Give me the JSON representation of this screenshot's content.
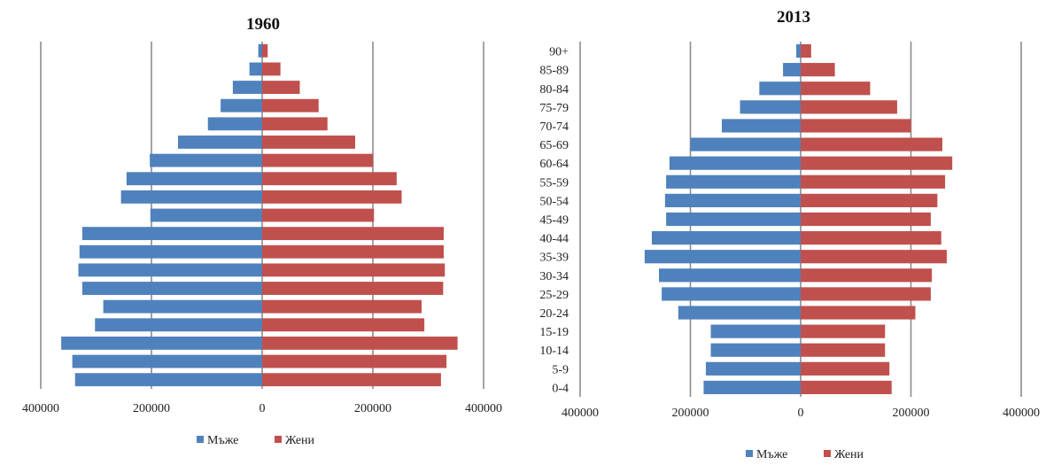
{
  "chart_data": [
    {
      "type": "bar",
      "orientation": "horizontal",
      "title": "1960",
      "categories": [
        "0-4",
        "5-9",
        "10-14",
        "15-19",
        "20-24",
        "25-29",
        "30-34",
        "35-39",
        "40-44",
        "45-49",
        "50-54",
        "55-59",
        "60-64",
        "65-69",
        "70-74",
        "75-79",
        "80-84",
        "85-89",
        "90+"
      ],
      "series": [
        {
          "name": "Мъже",
          "color": "#4F81BD",
          "values": [
            -338000,
            -343000,
            -363000,
            -302000,
            -287000,
            -325000,
            -332000,
            -330000,
            -325000,
            -202000,
            -255000,
            -245000,
            -203000,
            -152000,
            -98000,
            -75000,
            -53000,
            -23000,
            -7000
          ]
        },
        {
          "name": "Жени",
          "color": "#C0504D",
          "values": [
            323000,
            333000,
            353000,
            293000,
            288000,
            327000,
            330000,
            328000,
            328000,
            202000,
            252000,
            243000,
            200000,
            168000,
            118000,
            102000,
            68000,
            33000,
            10000
          ]
        }
      ],
      "xlim": [
        -400000,
        400000
      ],
      "xticks": [
        "400000",
        "200000",
        "0",
        "200000",
        "400000"
      ],
      "grid": true,
      "legend": "bottom"
    },
    {
      "type": "bar",
      "orientation": "horizontal",
      "title": "2013",
      "categories": [
        "0-4",
        "5-9",
        "10-14",
        "15-19",
        "20-24",
        "25-29",
        "30-34",
        "35-39",
        "40-44",
        "45-49",
        "50-54",
        "55-59",
        "60-64",
        "65-69",
        "70-74",
        "75-79",
        "80-84",
        "85-89",
        "90+"
      ],
      "series": [
        {
          "name": "Мъже",
          "color": "#4F81BD",
          "values": [
            -176000,
            -172000,
            -163000,
            -163000,
            -222000,
            -252000,
            -257000,
            -283000,
            -270000,
            -244000,
            -246000,
            -244000,
            -238000,
            -200000,
            -143000,
            -110000,
            -75000,
            -32000,
            -8000
          ]
        },
        {
          "name": "Жени",
          "color": "#C0504D",
          "values": [
            165000,
            161000,
            153000,
            153000,
            208000,
            236000,
            238000,
            265000,
            255000,
            236000,
            248000,
            262000,
            275000,
            257000,
            200000,
            175000,
            126000,
            62000,
            19000
          ]
        }
      ],
      "xlim": [
        -400000,
        400000
      ],
      "xticks": [
        "400000",
        "200000",
        "0",
        "200000",
        "400000"
      ],
      "grid": true,
      "legend": "bottom"
    }
  ]
}
